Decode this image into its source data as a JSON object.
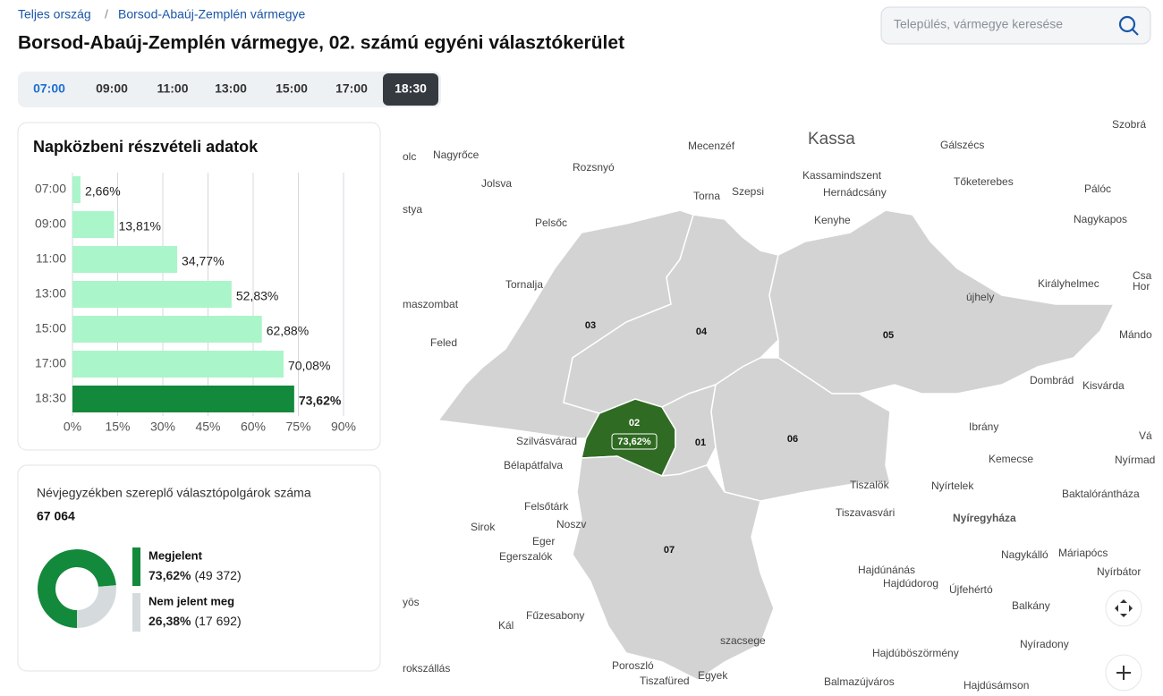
{
  "breadcrumb": [
    "Teljes ország",
    "Borsod-Abaúj-Zemplén vármegye"
  ],
  "breadcrumb_separator": "/",
  "title": "Borsod-Abaúj-Zemplén vármegye, 02. számú egyéni választókerület",
  "search_placeholder": "Település, vármegye keresése",
  "time_tabs": [
    "07:00",
    "09:00",
    "11:00",
    "13:00",
    "15:00",
    "17:00",
    "18:30"
  ],
  "active_tab": 6,
  "chart_data": {
    "type": "bar",
    "orientation": "horizontal",
    "title": "Napközbeni részvételi adatok",
    "categories": [
      "07:00",
      "09:00",
      "11:00",
      "13:00",
      "15:00",
      "17:00",
      "18:30"
    ],
    "values": [
      2.66,
      13.81,
      34.77,
      52.83,
      62.88,
      70.08,
      73.62
    ],
    "value_labels": [
      "2,66%",
      "13,81%",
      "34,77%",
      "52,83%",
      "62,88%",
      "70,08%",
      "73,62%"
    ],
    "color": "#aaf5c9",
    "highlight_color": "#13893b",
    "highlight_index": 6,
    "xlim": [
      0,
      90
    ],
    "xticks": [
      {
        "value": 0,
        "label": "0%"
      },
      {
        "value": 15,
        "label": "15%"
      },
      {
        "value": 30,
        "label": "30%"
      },
      {
        "value": 45,
        "label": "45%"
      },
      {
        "value": 60,
        "label": "60%"
      },
      {
        "value": 75,
        "label": "75%"
      },
      {
        "value": 90,
        "label": "90%"
      }
    ],
    "grid": true
  },
  "registered": {
    "label": "Névjegyzékben szereplő választópolgárok száma",
    "value": "67 064"
  },
  "turnout_chart": {
    "type": "donut",
    "categories": [
      "Megjelent",
      "Nem jelent meg"
    ],
    "values": [
      73.62,
      26.38
    ],
    "value_labels": [
      "73,62%",
      "26,38%"
    ],
    "counts": [
      "(49 372)",
      "(17 692)"
    ],
    "colors": [
      "#13893b",
      "#d5dadd"
    ]
  },
  "map": {
    "districts": [
      "03",
      "04",
      "05",
      "02",
      "01",
      "06",
      "07"
    ],
    "highlight_district": 3,
    "places": [
      "olc",
      "Nagyrőce",
      "Jolsva",
      "stya",
      "Rozsnyó",
      "Pelsőc",
      "Mecenzéf",
      "Kassa",
      "Torna",
      "Szepsi",
      "Kassamindszent",
      "Hernádcsány",
      "Kenyhe",
      "Gálszécs",
      "Tőketerebes",
      "Pálóc",
      "Nagykapos",
      "Tornalja",
      "maszombat",
      "Feled",
      "újhely",
      "Királyhelmec",
      "Csa",
      "Hor",
      "Mándo",
      "Dombrád",
      "Kisvárda",
      "Ibrány",
      "Vá",
      "Kemecse",
      "Nyírmad",
      "Szilvásvárad",
      "Bélapátfalva",
      "Tiszalök",
      "Nyírtelek",
      "Baktalórántháza",
      "Felsőtárk",
      "Tiszavasvári",
      "Nyíregyháza",
      "Sirok",
      "Noszv",
      "Eger",
      "Egerszalók",
      "Nagykálló",
      "Máriapócs",
      "Nyírbátor",
      "Hajdúnánás",
      "Hajdúdorog",
      "Újfehértó",
      "yös",
      "Fűzesabony",
      "Balkány",
      "Kál",
      "szacsege",
      "Nyíradony",
      "Hajdúböszörmény",
      "rokszállás",
      "Poroszló",
      "Egyek",
      "Tiszafüred",
      "Balmazújváros",
      "Hajdúsámson",
      "Szobrá"
    ]
  }
}
